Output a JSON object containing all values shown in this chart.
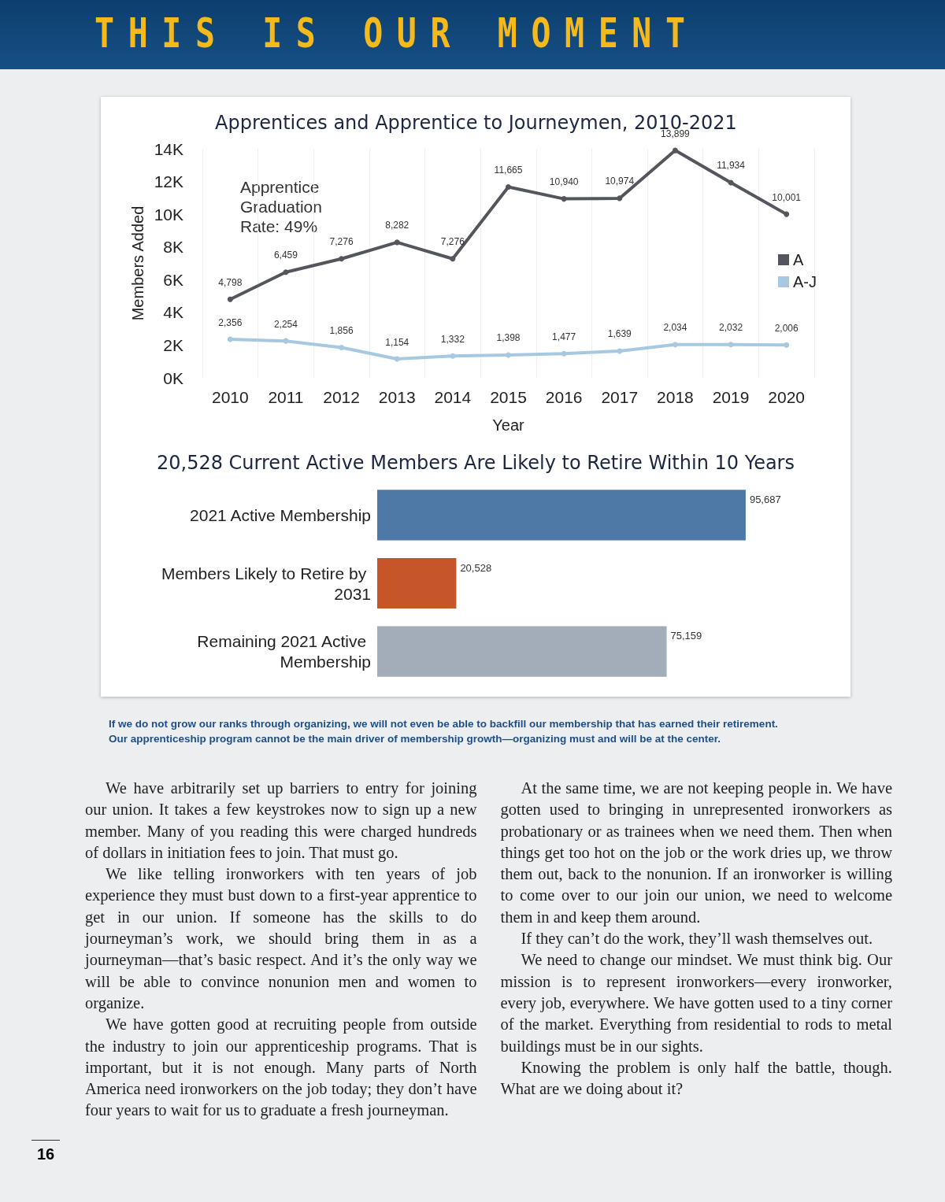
{
  "chart_data": [
    {
      "type": "other",
      "title": "THIS IS OUR MOMENT"
    },
    {
      "type": "line",
      "title": "Apprentices and Apprentice to Journeymen, 2010-2021",
      "xlabel": "Year",
      "ylabel": "Members Added",
      "categories": [
        "2010",
        "2011",
        "2012",
        "2013",
        "2014",
        "2015",
        "2016",
        "2017",
        "2018",
        "2019",
        "2020"
      ],
      "series": [
        {
          "name": "A",
          "color": "#53565c",
          "values": [
            4798,
            6459,
            7276,
            8282,
            7276,
            11665,
            10940,
            10974,
            13899,
            11934,
            10001
          ],
          "value_labels": [
            "4,798",
            "6,459",
            "7,276",
            "8,282",
            "7,276",
            "11,665",
            "10,940",
            "10,974",
            "13,899",
            "11,934",
            "10,001"
          ]
        },
        {
          "name": "A-J",
          "color": "#a6c8e0",
          "values": [
            2356,
            2254,
            1856,
            1154,
            1332,
            1398,
            1477,
            1639,
            2034,
            2032,
            2006
          ],
          "value_labels": [
            "2,356",
            "2,254",
            "1,856",
            "1,154",
            "1,332",
            "1,398",
            "1,477",
            "1,639",
            "2,034",
            "2,032",
            "2,006"
          ]
        }
      ],
      "ylim": [
        0,
        14000
      ],
      "yticks": [
        {
          "value": 0,
          "label": "0K"
        },
        {
          "value": 2000,
          "label": "2K"
        },
        {
          "value": 4000,
          "label": "4K"
        },
        {
          "value": 6000,
          "label": "6K"
        },
        {
          "value": 8000,
          "label": "8K"
        },
        {
          "value": 10000,
          "label": "10K"
        },
        {
          "value": 12000,
          "label": "12K"
        },
        {
          "value": 14000,
          "label": "14K"
        }
      ],
      "grid": "x",
      "legend": "right",
      "marker": "circle",
      "annotations": [
        "Apprentice Graduation Rate: 49%"
      ]
    },
    {
      "type": "bar",
      "orientation": "horizontal",
      "title": "20,528 Current Active Members Are Likely to Retire Within 10 Years",
      "categories": [
        "2021 Active Membership",
        "Members Likely to Retire by 2031",
        "Remaining 2021 Active Membership"
      ],
      "values": [
        95687,
        20528,
        75159
      ],
      "value_labels": [
        "95,687",
        "20,528",
        "75,159"
      ],
      "colors": [
        "#4e79a7",
        "#c65629",
        "#a3adb9"
      ],
      "annotations": [
        "If we do not grow our ranks through organizing, we will not even be able to backfill our membership that has earned their retirement.",
        "Our apprenticeship program cannot be the main driver of membership growth—organizing must and will be at the center."
      ]
    },
    {
      "type": "other",
      "annotations": [
        "We have arbitrarily set up barriers to entry for joining our union. It takes a few keystrokes now to sign up a new member. Many of you reading this were charged hundreds of dollars in initiation fees to join. That must go.",
        "We like telling ironworkers with ten years of job experience they must bust down to a first-year apprentice to get in our union. If someone has the skills to do journeyman’s work, we should bring them in as a journeyman—that’s basic respect. And it’s the only way we will be able to convince nonunion men and women to organize.",
        "We have gotten good at recruiting people from outside the industry to join our apprenticeship programs. That is important, but it is not enough. Many parts of North America need ironworkers on the job today; they don’t have four years to wait for us to graduate a fresh journeyman.",
        "At the same time, we are not keeping people in. We have gotten used to bringing in unrepresented ironworkers as probationary or as trainees when we need them. Then when things get too hot on the job or the work dries up, we throw them out, back to the nonunion. If an ironworker is willing to come over to our join our union, we need to welcome them in and keep them around.",
        "If they can’t do the work, they’ll wash themselves out.",
        "We need to change our mindset. We must think big. Our mission is to represent ironworkers—every ironworker, every job, everywhere. We have gotten used to a tiny corner of the market. Everything from residential to rods to metal buildings must be in our sights.",
        "Knowing the problem is only half the battle, though. What are we doing about it?"
      ]
    },
    {
      "type": "other",
      "title": "16"
    }
  ]
}
